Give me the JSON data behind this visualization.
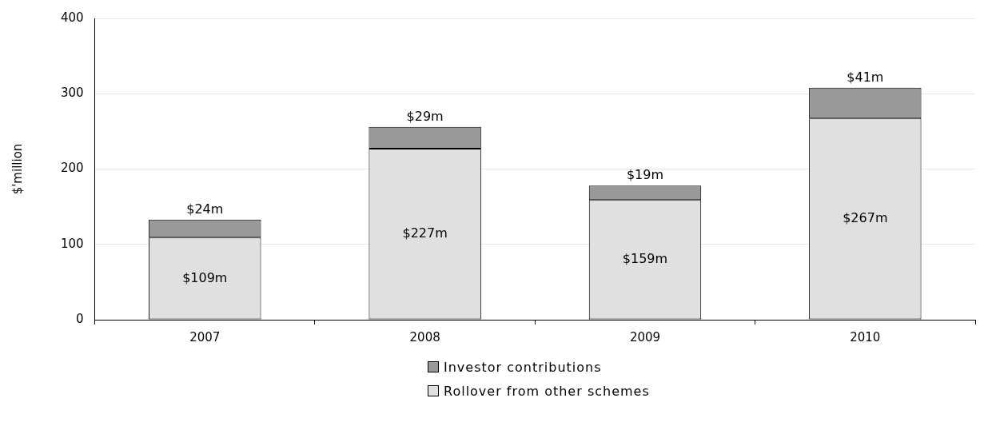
{
  "chart_data": {
    "type": "bar",
    "stacked": true,
    "ylabel": "$'million",
    "categories": [
      "2007",
      "2008",
      "2009",
      "2010"
    ],
    "series": [
      {
        "name": "Rollover from other schemes",
        "color": "#e0e0e0",
        "values": [
          109,
          227,
          159,
          267
        ],
        "value_labels": [
          "$109m",
          "$227m",
          "$159m",
          "$267m"
        ]
      },
      {
        "name": "Investor contributions",
        "color": "#999999",
        "values": [
          24,
          29,
          19,
          41
        ],
        "value_labels": [
          "$24m",
          "$29m",
          "$19m",
          "$41m"
        ]
      }
    ],
    "ylim": [
      0,
      400
    ],
    "yticks": [
      0,
      100,
      200,
      300,
      400
    ],
    "grid": "y",
    "legend": "bottom"
  }
}
